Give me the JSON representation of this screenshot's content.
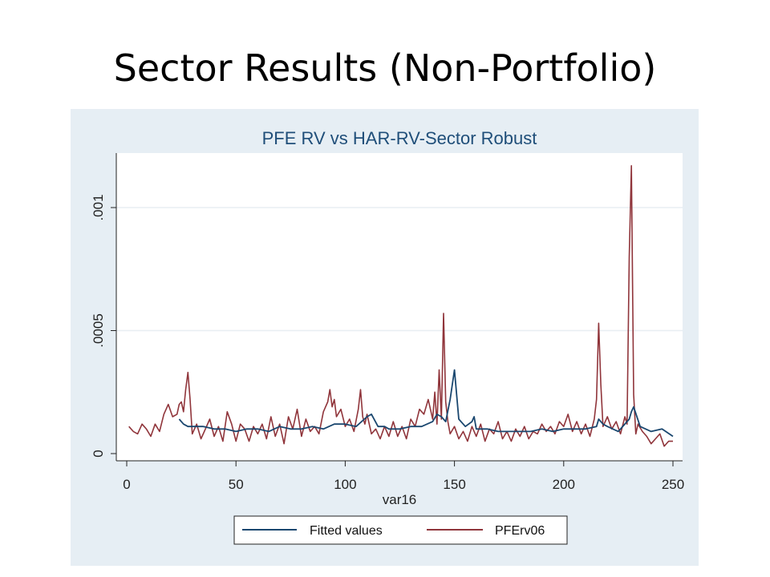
{
  "slide": {
    "title": "Sector Results (Non-Portfolio)"
  },
  "colors": {
    "panel_bg": "#e6eef4",
    "plot_bg": "#ffffff",
    "grid": "#e8eef3",
    "title": "#1f4e79",
    "fitted": "#1a476f",
    "actual": "#90353b"
  },
  "chart_data": {
    "type": "line",
    "title": "PFE RV vs HAR-RV-Sector Robust",
    "xlabel": "var16",
    "ylabel": "",
    "xlim": [
      -5,
      255
    ],
    "ylim": [
      0,
      0.00121
    ],
    "x_ticks": [
      0,
      50,
      100,
      150,
      200,
      250
    ],
    "x_tick_labels": [
      "0",
      "50",
      "100",
      "150",
      "200",
      "250"
    ],
    "y_ticks": [
      0,
      0.0005,
      0.001
    ],
    "y_tick_labels": [
      "0",
      ".0005",
      ".001"
    ],
    "grid": true,
    "legend_position": "bottom",
    "series": [
      {
        "name": "Fitted values",
        "x": [
          24,
          26,
          28,
          30,
          35,
          40,
          45,
          50,
          55,
          60,
          65,
          70,
          75,
          80,
          85,
          90,
          95,
          100,
          105,
          110,
          112,
          115,
          118,
          120,
          125,
          130,
          135,
          140,
          142,
          144,
          146,
          148,
          149,
          150,
          152,
          155,
          158,
          159,
          160,
          165,
          170,
          175,
          180,
          185,
          190,
          195,
          200,
          205,
          210,
          215,
          216,
          218,
          220,
          225,
          230,
          231,
          232,
          235,
          240,
          245,
          250
        ],
        "values": [
          0.00014,
          0.00012,
          0.00011,
          0.00011,
          0.00011,
          0.0001,
          0.0001,
          9e-05,
          0.0001,
          0.0001,
          9e-05,
          0.00011,
          0.0001,
          0.0001,
          0.00011,
          0.0001,
          0.00012,
          0.00012,
          0.00011,
          0.00015,
          0.00016,
          0.00011,
          0.00011,
          0.0001,
          0.0001,
          0.00011,
          0.00011,
          0.00013,
          0.00016,
          0.00015,
          0.00013,
          0.00022,
          0.00028,
          0.00034,
          0.00014,
          0.00011,
          0.00013,
          0.00015,
          0.0001,
          0.0001,
          9e-05,
          9e-05,
          9e-05,
          9e-05,
          0.0001,
          9e-05,
          0.0001,
          0.0001,
          0.0001,
          0.00011,
          0.00014,
          0.00012,
          0.00011,
          9e-05,
          0.00014,
          0.00017,
          0.00019,
          0.00011,
          9e-05,
          0.0001,
          7e-05
        ]
      },
      {
        "name": "PFErv06",
        "x": [
          1,
          3,
          5,
          7,
          9,
          11,
          13,
          15,
          17,
          19,
          21,
          23,
          24,
          25,
          26,
          27,
          28,
          29,
          30,
          32,
          34,
          36,
          38,
          40,
          42,
          44,
          46,
          48,
          50,
          52,
          54,
          56,
          58,
          60,
          62,
          64,
          66,
          68,
          70,
          72,
          74,
          76,
          78,
          80,
          82,
          84,
          86,
          88,
          90,
          92,
          93,
          94,
          95,
          96,
          98,
          100,
          102,
          104,
          106,
          107,
          108,
          109,
          110,
          112,
          114,
          116,
          118,
          120,
          122,
          124,
          126,
          128,
          130,
          132,
          134,
          136,
          138,
          140,
          141,
          142,
          143,
          144,
          145,
          146,
          147,
          148,
          150,
          152,
          154,
          156,
          158,
          160,
          162,
          164,
          166,
          168,
          170,
          172,
          174,
          176,
          178,
          180,
          182,
          184,
          186,
          188,
          190,
          192,
          194,
          196,
          198,
          200,
          202,
          204,
          206,
          208,
          210,
          212,
          214,
          215,
          216,
          217,
          218,
          220,
          222,
          224,
          226,
          228,
          229,
          230,
          231,
          232,
          233,
          234,
          236,
          238,
          240,
          242,
          244,
          246,
          248,
          250
        ],
        "values": [
          0.00011,
          9e-05,
          8e-05,
          0.00012,
          0.0001,
          7e-05,
          0.00012,
          9e-05,
          0.00016,
          0.0002,
          0.00015,
          0.00016,
          0.0002,
          0.00021,
          0.00017,
          0.00026,
          0.00033,
          0.00022,
          8e-05,
          0.00012,
          6e-05,
          0.0001,
          0.00014,
          7e-05,
          0.00011,
          5e-05,
          0.00017,
          0.00012,
          5e-05,
          0.00012,
          0.0001,
          5e-05,
          0.00011,
          8e-05,
          0.00012,
          6e-05,
          0.00015,
          7e-05,
          0.00012,
          4e-05,
          0.00015,
          0.0001,
          0.00018,
          7e-05,
          0.00014,
          9e-05,
          0.00011,
          8e-05,
          0.00017,
          0.00021,
          0.00026,
          0.00019,
          0.00022,
          0.00015,
          0.00018,
          0.00011,
          0.00014,
          9e-05,
          0.00018,
          0.00026,
          0.00015,
          0.00012,
          0.00016,
          8e-05,
          0.0001,
          6e-05,
          0.00011,
          7e-05,
          0.00013,
          7e-05,
          0.00011,
          6e-05,
          0.00014,
          0.00011,
          0.00018,
          0.00016,
          0.00022,
          0.00014,
          0.00025,
          0.00012,
          0.00034,
          0.00014,
          0.00057,
          0.00021,
          0.00013,
          8e-05,
          0.00011,
          6e-05,
          9e-05,
          5e-05,
          0.00011,
          7e-05,
          0.00012,
          5e-05,
          0.0001,
          8e-05,
          0.00013,
          6e-05,
          9e-05,
          5e-05,
          0.0001,
          7e-05,
          0.00011,
          6e-05,
          9e-05,
          8e-05,
          0.00012,
          9e-05,
          0.00011,
          8e-05,
          0.00013,
          0.00011,
          0.00016,
          9e-05,
          0.00013,
          8e-05,
          0.00012,
          7e-05,
          0.00014,
          0.00022,
          0.00053,
          0.00028,
          0.00011,
          0.00015,
          0.0001,
          0.00013,
          8e-05,
          0.00015,
          0.00012,
          0.0008,
          0.00117,
          0.00024,
          8e-05,
          0.00012,
          9e-05,
          7e-05,
          4e-05,
          6e-05,
          8e-05,
          3e-05,
          5e-05,
          5e-05
        ]
      }
    ]
  }
}
